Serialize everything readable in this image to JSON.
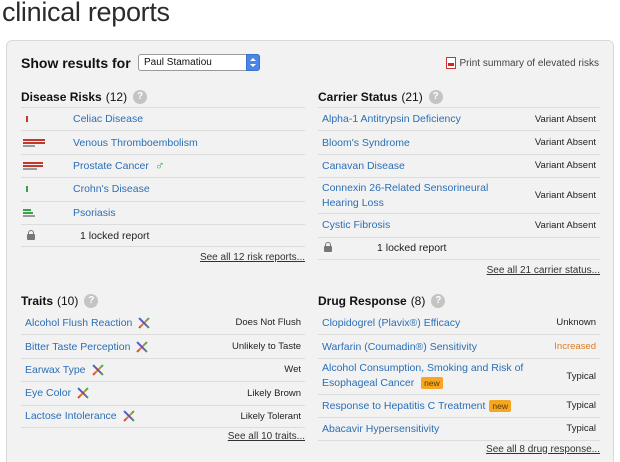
{
  "page_title": "clinical reports",
  "show_results": {
    "label": "Show results for",
    "selected_user": "Paul Stamatiou",
    "print_link": "Print summary of elevated risks"
  },
  "disease_risks": {
    "title": "Disease Risks",
    "count": "(12)",
    "items": [
      {
        "label": "Celiac Disease"
      },
      {
        "label": "Venous Thromboembolism"
      },
      {
        "label": "Prostate Cancer"
      },
      {
        "label": "Crohn's Disease"
      },
      {
        "label": "Psoriasis"
      }
    ],
    "locked": "1 locked report",
    "see_all": "See all 12 risk reports..."
  },
  "carrier_status": {
    "title": "Carrier Status",
    "count": "(21)",
    "items": [
      {
        "label": "Alpha-1 Antitrypsin Deficiency",
        "value": "Variant Absent"
      },
      {
        "label": "Bloom's Syndrome",
        "value": "Variant Absent"
      },
      {
        "label": "Canavan Disease",
        "value": "Variant Absent"
      },
      {
        "label": "Connexin 26-Related Sensorineural Hearing Loss",
        "value": "Variant Absent"
      },
      {
        "label": "Cystic Fibrosis",
        "value": "Variant Absent"
      }
    ],
    "locked": "1 locked report",
    "see_all": "See all 21 carrier status..."
  },
  "traits": {
    "title": "Traits",
    "count": "(10)",
    "items": [
      {
        "label": "Alcohol Flush Reaction",
        "value": "Does Not Flush"
      },
      {
        "label": "Bitter Taste Perception",
        "value": "Unlikely to Taste"
      },
      {
        "label": "Earwax Type",
        "value": "Wet"
      },
      {
        "label": "Eye Color",
        "value": "Likely Brown"
      },
      {
        "label": "Lactose Intolerance",
        "value": "Likely Tolerant"
      }
    ],
    "see_all": "See all 10 traits..."
  },
  "drug_response": {
    "title": "Drug Response",
    "count": "(8)",
    "items": [
      {
        "label": "Clopidogrel (Plavix®) Efficacy",
        "value": "Unknown"
      },
      {
        "label": "Warfarin (Coumadin®) Sensitivity",
        "value": "Increased"
      },
      {
        "label": "Alcohol Consumption, Smoking and Risk of Esophageal Cancer",
        "value": "Typical",
        "badge": "new"
      },
      {
        "label": "Response to Hepatitis C Treatment",
        "value": "Typical",
        "badge": "new"
      },
      {
        "label": "Abacavir Hypersensitivity",
        "value": "Typical"
      }
    ],
    "see_all": "See all 8 drug response..."
  },
  "colors": {
    "link": "#2a6fb8",
    "increased": "#e07b1e",
    "badge": "#f5a623"
  }
}
